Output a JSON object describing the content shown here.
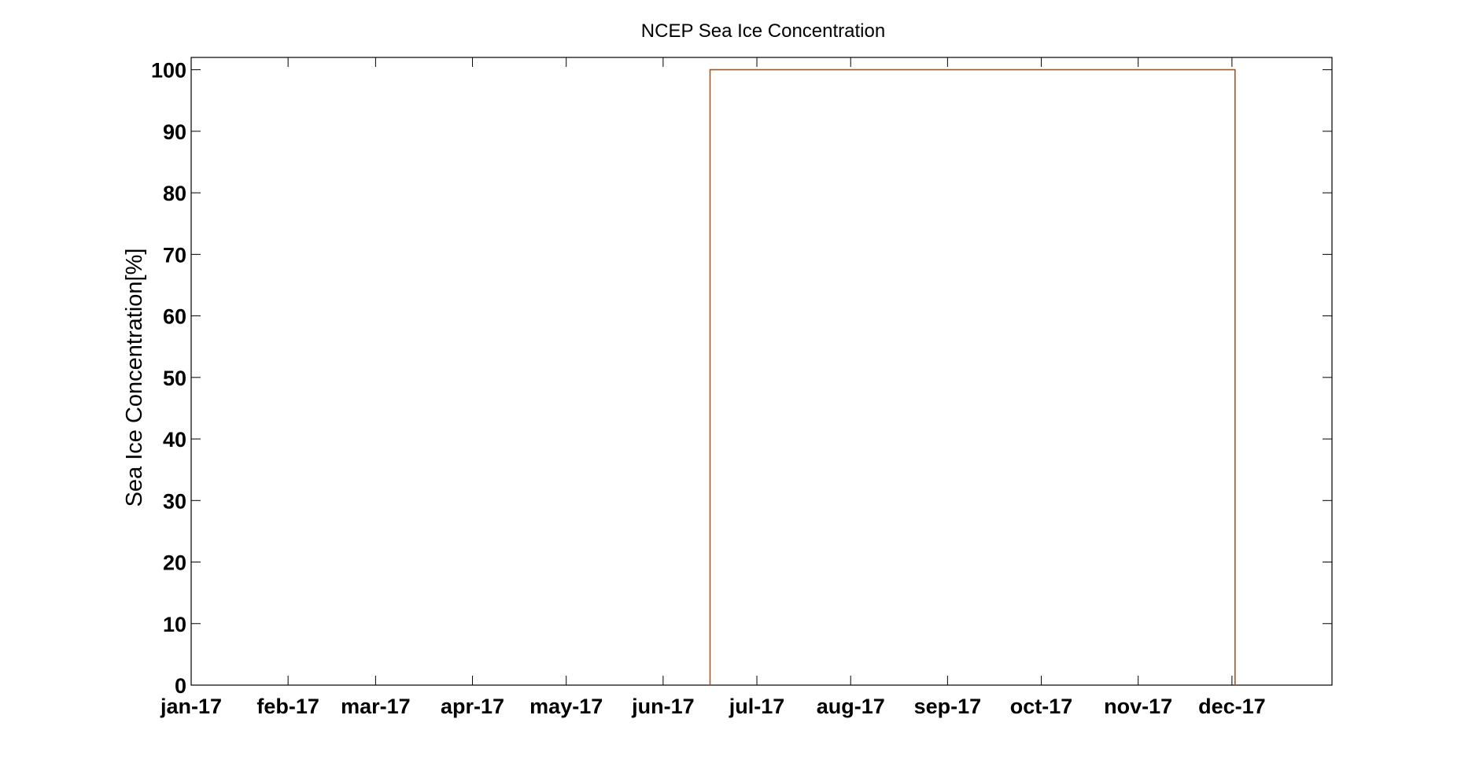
{
  "chart_data": {
    "type": "line",
    "title": "NCEP Sea Ice Concentration",
    "xlabel": "",
    "ylabel": "Sea Ice Concentration[%]",
    "x_axis": {
      "type": "date",
      "tick_labels": [
        "jan-17",
        "feb-17",
        "mar-17",
        "apr-17",
        "may-17",
        "jun-17",
        "jul-17",
        "aug-17",
        "sep-17",
        "oct-17",
        "nov-17",
        "dec-17"
      ],
      "tick_dates": [
        "2017-01-01",
        "2017-02-01",
        "2017-03-01",
        "2017-04-01",
        "2017-05-01",
        "2017-06-01",
        "2017-07-01",
        "2017-07-31",
        "2017-08-31",
        "2017-09-30",
        "2017-10-31",
        "2017-11-30"
      ],
      "range": [
        "2017-01-01",
        "2018-01-01"
      ]
    },
    "y_axis": {
      "ticks": [
        0,
        10,
        20,
        30,
        40,
        50,
        60,
        70,
        80,
        90,
        100
      ],
      "ylim": [
        0,
        102
      ]
    },
    "grid": false,
    "series": [
      {
        "color": "#a05a2c",
        "step": true,
        "x": [
          "2017-06-16",
          "2017-06-16",
          "2017-12-01",
          "2017-12-01"
        ],
        "y": [
          0,
          100,
          100,
          0
        ]
      }
    ],
    "colors": {
      "axis": "#000000",
      "series": "#a05a2c"
    }
  }
}
